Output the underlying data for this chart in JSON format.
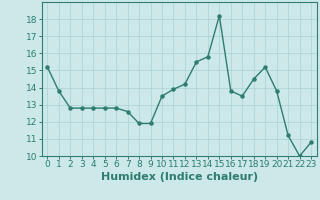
{
  "x": [
    0,
    1,
    2,
    3,
    4,
    5,
    6,
    7,
    8,
    9,
    10,
    11,
    12,
    13,
    14,
    15,
    16,
    17,
    18,
    19,
    20,
    21,
    22,
    23
  ],
  "y": [
    15.2,
    13.8,
    12.8,
    12.8,
    12.8,
    12.8,
    12.8,
    12.6,
    11.9,
    11.9,
    13.5,
    13.9,
    14.2,
    15.5,
    15.8,
    18.2,
    13.8,
    13.5,
    14.5,
    15.2,
    13.8,
    11.2,
    10.0,
    10.8
  ],
  "xlabel": "Humidex (Indice chaleur)",
  "ylim": [
    10,
    19
  ],
  "xlim": [
    -0.5,
    23.5
  ],
  "yticks": [
    10,
    11,
    12,
    13,
    14,
    15,
    16,
    17,
    18
  ],
  "xticks": [
    0,
    1,
    2,
    3,
    4,
    5,
    6,
    7,
    8,
    9,
    10,
    11,
    12,
    13,
    14,
    15,
    16,
    17,
    18,
    19,
    20,
    21,
    22,
    23
  ],
  "line_color": "#2e7d6e",
  "marker_color": "#2e7d6e",
  "bg_color": "#cce8e8",
  "grid_color": "#b0d4d4",
  "xlabel_fontsize": 8,
  "tick_fontsize": 6.5
}
